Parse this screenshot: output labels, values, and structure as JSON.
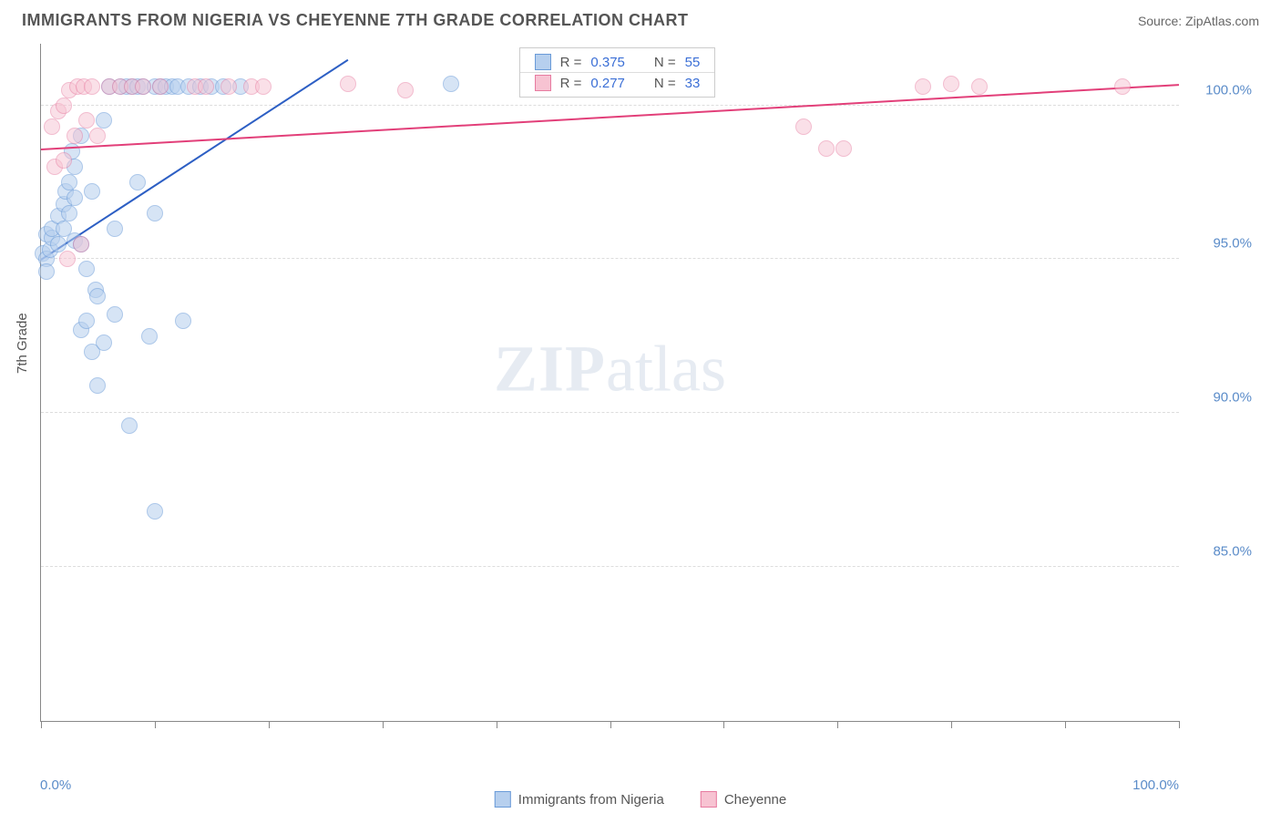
{
  "header": {
    "title": "IMMIGRANTS FROM NIGERIA VS CHEYENNE 7TH GRADE CORRELATION CHART",
    "source_prefix": "Source: ",
    "source_name": "ZipAtlas.com"
  },
  "chart": {
    "type": "scatter",
    "yaxis_title": "7th Grade",
    "xlim": [
      0,
      100
    ],
    "ylim": [
      80,
      102
    ],
    "xticks": [
      0,
      10,
      20,
      30,
      40,
      50,
      60,
      70,
      80,
      90,
      100
    ],
    "xlabel_min": "0.0%",
    "xlabel_max": "100.0%",
    "ygrid": [
      {
        "v": 100,
        "label": "100.0%"
      },
      {
        "v": 95,
        "label": "95.0%"
      },
      {
        "v": 90,
        "label": "90.0%"
      },
      {
        "v": 85,
        "label": "85.0%"
      }
    ],
    "marker_radius": 9,
    "grid_color": "#dddddd",
    "axis_color": "#888888",
    "background_color": "#ffffff",
    "watermark_bold": "ZIP",
    "watermark_rest": "atlas",
    "series": [
      {
        "key": "nigeria",
        "label": "Immigrants from Nigeria",
        "fill": "#b6cfee",
        "stroke": "#6a9bd8",
        "fill_opacity": 0.55,
        "trend": {
          "x1": 0,
          "y1": 95.0,
          "x2": 27,
          "y2": 101.5,
          "color": "#2d5fc4",
          "width": 2
        },
        "r_value": "0.375",
        "n_value": "55",
        "points": [
          [
            0.2,
            95.2
          ],
          [
            0.5,
            95.0
          ],
          [
            0.5,
            95.8
          ],
          [
            0.8,
            95.3
          ],
          [
            1.0,
            95.7
          ],
          [
            1.0,
            96.0
          ],
          [
            0.5,
            94.6
          ],
          [
            1.5,
            95.5
          ],
          [
            1.5,
            96.4
          ],
          [
            2.0,
            96.0
          ],
          [
            2.0,
            96.8
          ],
          [
            2.2,
            97.2
          ],
          [
            2.5,
            96.5
          ],
          [
            2.5,
            97.5
          ],
          [
            2.7,
            98.5
          ],
          [
            3.0,
            97.0
          ],
          [
            3.0,
            98.0
          ],
          [
            3.0,
            95.6
          ],
          [
            3.5,
            99.0
          ],
          [
            3.5,
            95.5
          ],
          [
            3.5,
            92.7
          ],
          [
            4.0,
            93.0
          ],
          [
            4.0,
            94.7
          ],
          [
            4.5,
            92.0
          ],
          [
            4.5,
            97.2
          ],
          [
            4.8,
            94.0
          ],
          [
            5.0,
            93.8
          ],
          [
            5.0,
            90.9
          ],
          [
            5.5,
            92.3
          ],
          [
            5.5,
            99.5
          ],
          [
            6.0,
            100.6
          ],
          [
            6.5,
            96.0
          ],
          [
            6.5,
            93.2
          ],
          [
            7.0,
            100.6
          ],
          [
            7.5,
            100.6
          ],
          [
            7.8,
            89.6
          ],
          [
            8.0,
            100.6
          ],
          [
            8.5,
            97.5
          ],
          [
            8.5,
            100.6
          ],
          [
            9.0,
            100.6
          ],
          [
            9.5,
            92.5
          ],
          [
            10.0,
            100.6
          ],
          [
            10.0,
            96.5
          ],
          [
            10.0,
            86.8
          ],
          [
            10.5,
            100.6
          ],
          [
            11.0,
            100.6
          ],
          [
            11.5,
            100.6
          ],
          [
            12.0,
            100.6
          ],
          [
            12.5,
            93.0
          ],
          [
            13.0,
            100.6
          ],
          [
            14.0,
            100.6
          ],
          [
            15.0,
            100.6
          ],
          [
            16.0,
            100.6
          ],
          [
            17.5,
            100.6
          ],
          [
            36.0,
            100.7
          ]
        ]
      },
      {
        "key": "cheyenne",
        "label": "Cheyenne",
        "fill": "#f7c3d2",
        "stroke": "#e77ba0",
        "fill_opacity": 0.5,
        "trend": {
          "x1": 0,
          "y1": 98.6,
          "x2": 100,
          "y2": 100.7,
          "color": "#e23f79",
          "width": 2
        },
        "r_value": "0.277",
        "n_value": "33",
        "points": [
          [
            1.0,
            99.3
          ],
          [
            1.2,
            98.0
          ],
          [
            1.5,
            99.8
          ],
          [
            2.0,
            100.0
          ],
          [
            2.0,
            98.2
          ],
          [
            2.3,
            95.0
          ],
          [
            2.5,
            100.5
          ],
          [
            3.0,
            99.0
          ],
          [
            3.2,
            100.6
          ],
          [
            3.5,
            95.5
          ],
          [
            3.8,
            100.6
          ],
          [
            4.0,
            99.5
          ],
          [
            4.5,
            100.6
          ],
          [
            5.0,
            99.0
          ],
          [
            6.0,
            100.6
          ],
          [
            7.0,
            100.6
          ],
          [
            8.0,
            100.6
          ],
          [
            9.0,
            100.6
          ],
          [
            10.5,
            100.6
          ],
          [
            13.5,
            100.6
          ],
          [
            14.5,
            100.6
          ],
          [
            16.5,
            100.6
          ],
          [
            18.5,
            100.6
          ],
          [
            19.5,
            100.6
          ],
          [
            27.0,
            100.7
          ],
          [
            32.0,
            100.5
          ],
          [
            67.0,
            99.3
          ],
          [
            69.0,
            98.6
          ],
          [
            70.5,
            98.6
          ],
          [
            77.5,
            100.6
          ],
          [
            80.0,
            100.7
          ],
          [
            82.5,
            100.6
          ],
          [
            95.0,
            100.6
          ]
        ]
      }
    ],
    "r_legend": {
      "r_prefix": "R = ",
      "n_prefix": "N = "
    }
  }
}
